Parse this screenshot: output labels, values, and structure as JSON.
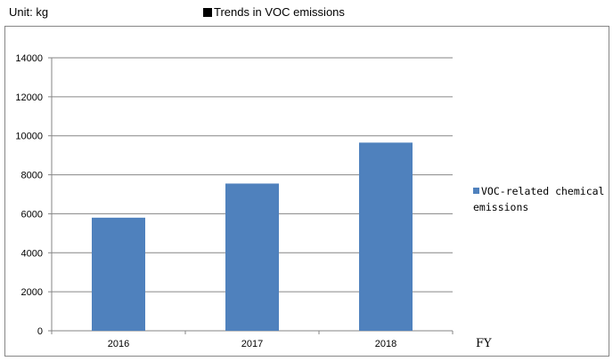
{
  "header": {
    "unit_label": "Unit: kg",
    "title": "Trends in VOC emissions"
  },
  "chart_data": {
    "type": "bar",
    "title": "Trends in VOC emissions",
    "unit": "Unit: kg",
    "categories": [
      "2016",
      "2017",
      "2018"
    ],
    "series": [
      {
        "name": "VOC-related chemical emissions",
        "values": [
          5800,
          7550,
          9650
        ],
        "color": "#4f81bd"
      }
    ],
    "xlabel": "FY",
    "ylabel": "",
    "ylim": [
      0,
      14000
    ],
    "yticks": [
      0,
      2000,
      4000,
      6000,
      8000,
      10000,
      12000,
      14000
    ],
    "grid": true,
    "legend_position": "right"
  }
}
